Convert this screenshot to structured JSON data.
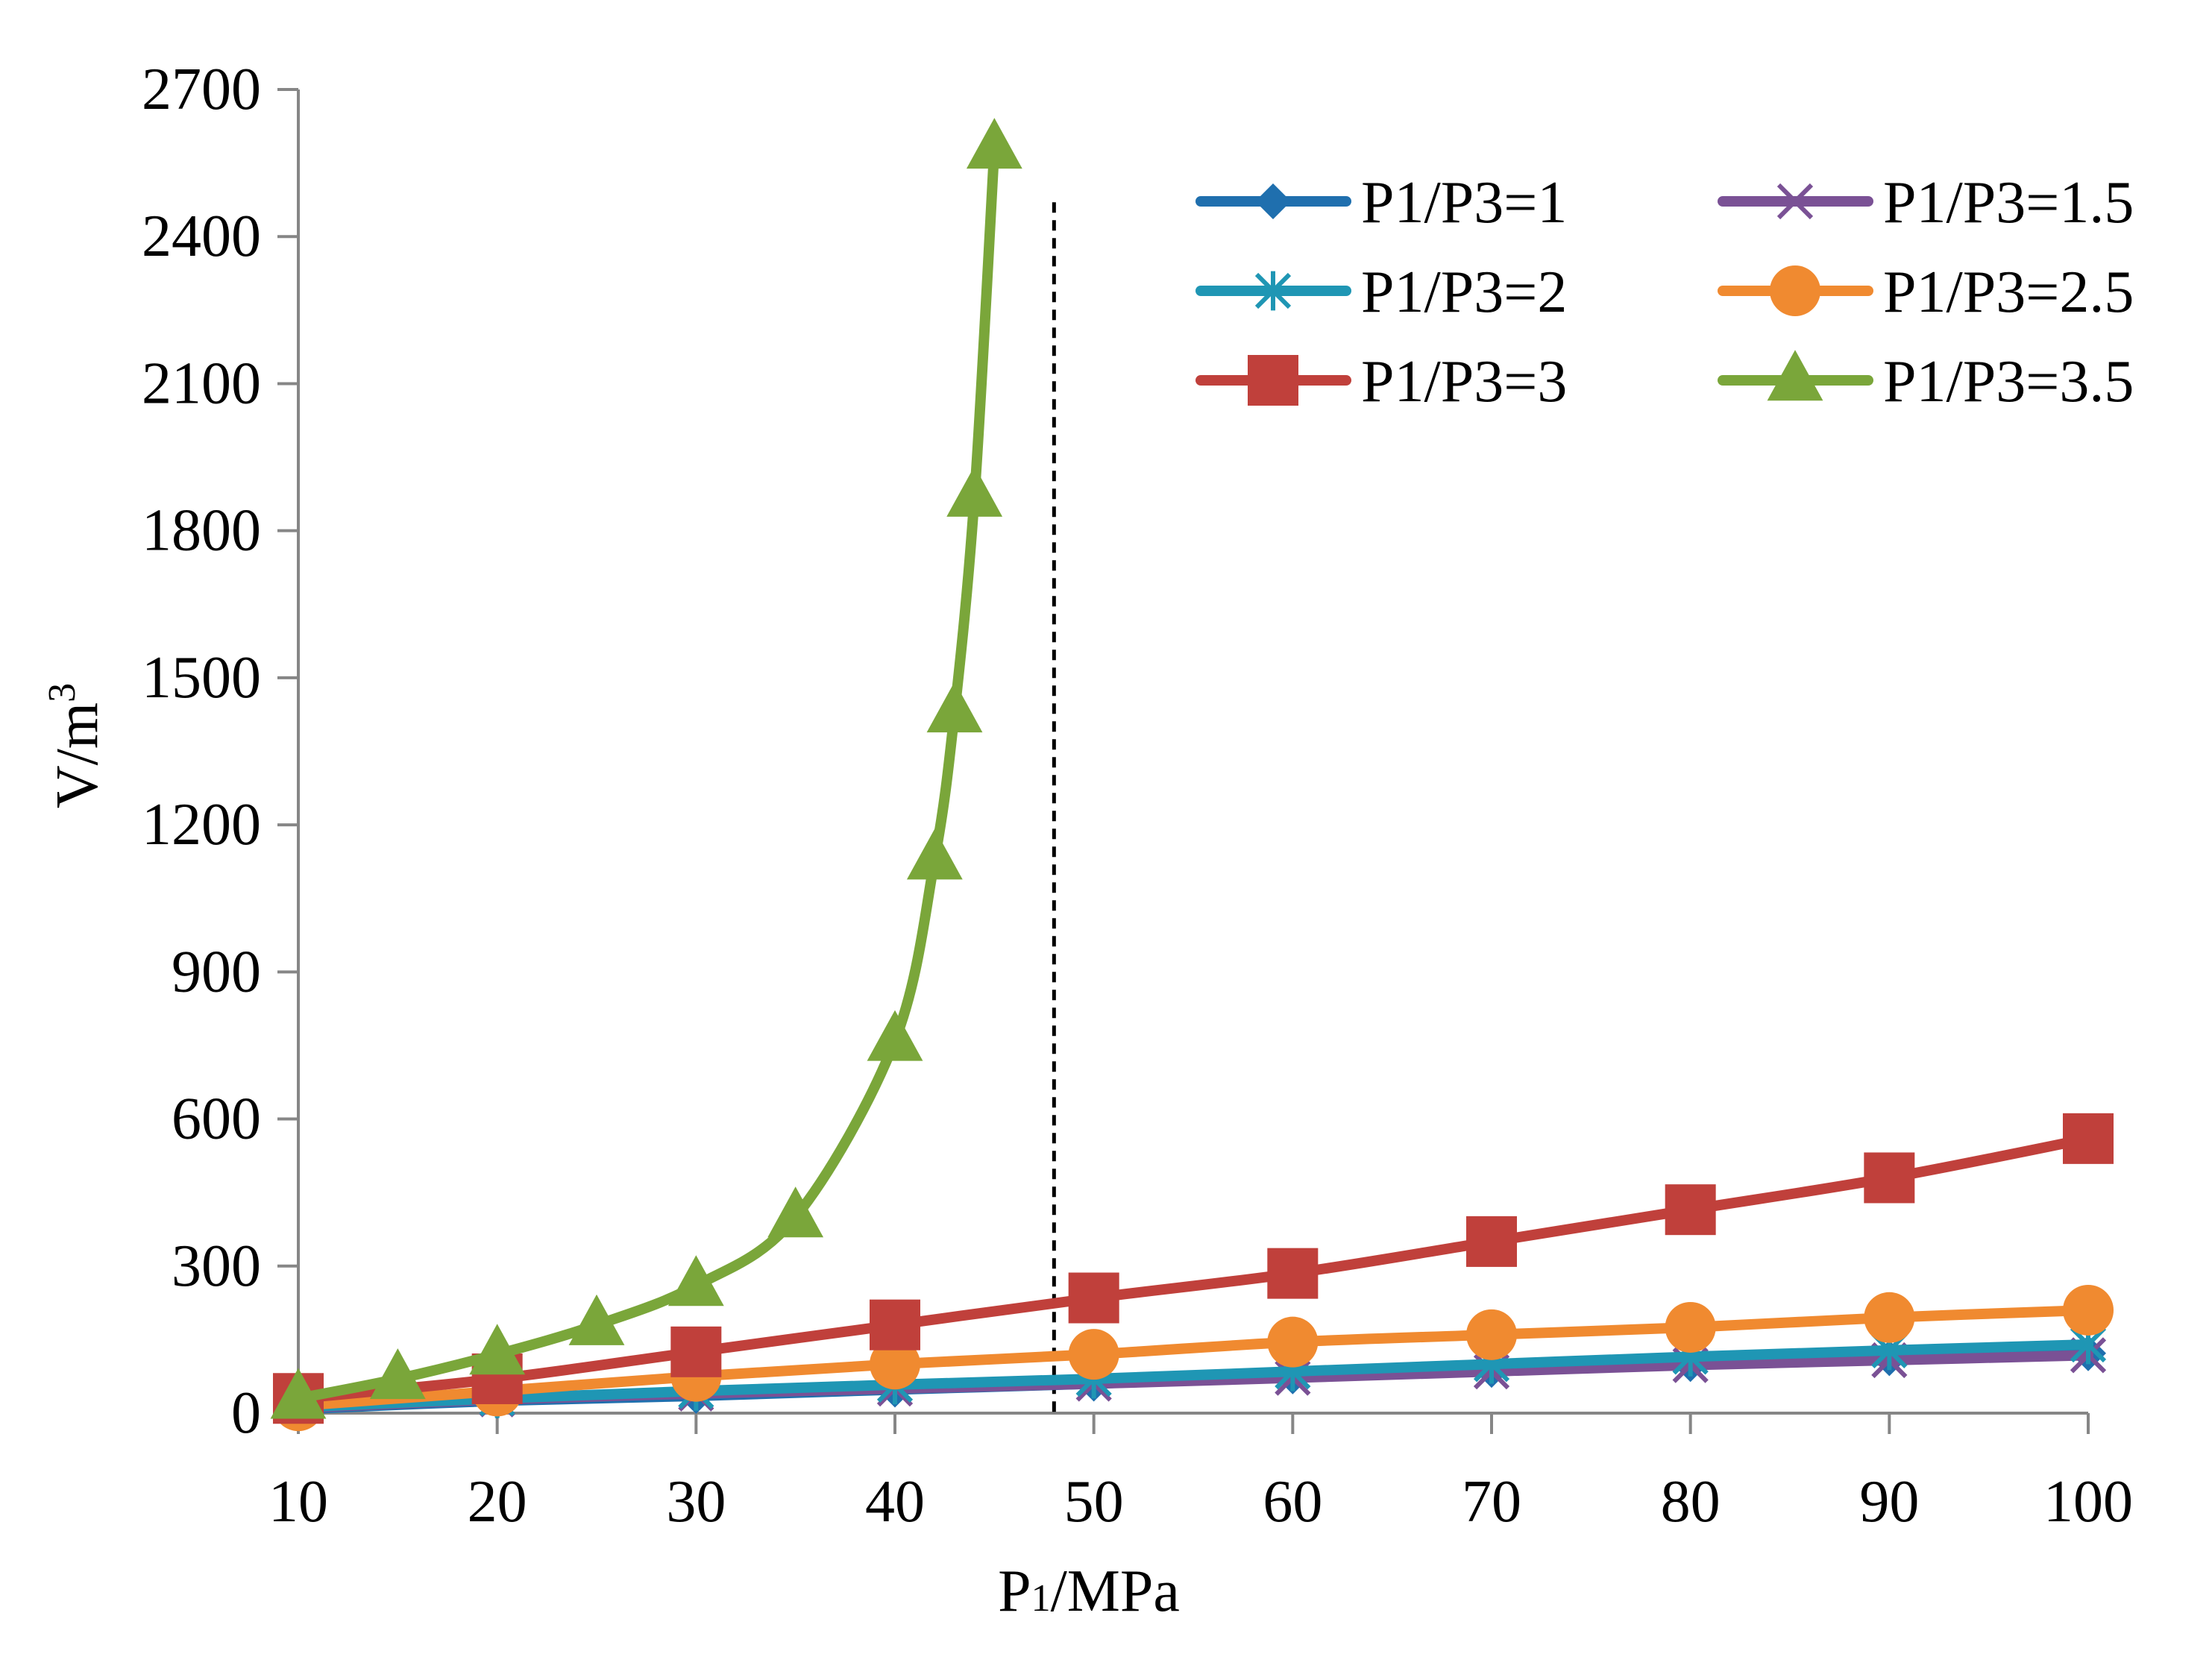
{
  "chart_data": {
    "type": "line",
    "title": "",
    "xlabel": {
      "main": "P",
      "sub": "1",
      "rest": "/MPa"
    },
    "ylabel": {
      "main": "V/m",
      "sup": "3"
    },
    "xlim": [
      10,
      100
    ],
    "ylim": [
      0,
      2700
    ],
    "xticks": [
      "10",
      "20",
      "30",
      "40",
      "50",
      "60",
      "70",
      "80",
      "90",
      "100"
    ],
    "yticks": [
      "0",
      "300",
      "600",
      "900",
      "1200",
      "1500",
      "1800",
      "2100",
      "2400",
      "2700"
    ],
    "reference_line_x": 48,
    "series": [
      {
        "name": "P1/P3=1",
        "color": "#1f6fae",
        "marker": "diamond",
        "x": [
          10,
          20,
          30,
          40,
          50,
          60,
          70,
          80,
          90,
          100
        ],
        "y": [
          8,
          25,
          35,
          48,
          60,
          75,
          88,
          100,
          112,
          122
        ]
      },
      {
        "name": "P1/P3=1.5",
        "color": "#7a5195",
        "marker": "x",
        "x": [
          10,
          20,
          30,
          40,
          50,
          60,
          70,
          80,
          90,
          100
        ],
        "y": [
          10,
          28,
          40,
          50,
          60,
          72,
          85,
          98,
          108,
          118
        ]
      },
      {
        "name": "P1/P3=2",
        "color": "#1f96b4",
        "marker": "star",
        "x": [
          10,
          20,
          30,
          40,
          50,
          60,
          70,
          80,
          90,
          100
        ],
        "y": [
          12,
          30,
          45,
          58,
          70,
          85,
          100,
          115,
          128,
          140
        ]
      },
      {
        "name": "P1/P3=2.5",
        "color": "#f08a30",
        "marker": "circle",
        "x": [
          10,
          20,
          30,
          40,
          50,
          60,
          70,
          80,
          90,
          100
        ],
        "y": [
          15,
          45,
          75,
          100,
          120,
          145,
          160,
          175,
          195,
          210
        ]
      },
      {
        "name": "P1/P3=3",
        "color": "#c0403b",
        "marker": "square",
        "x": [
          10,
          20,
          30,
          40,
          50,
          60,
          70,
          80,
          90,
          100
        ],
        "y": [
          30,
          70,
          125,
          180,
          235,
          285,
          350,
          415,
          480,
          560
        ]
      },
      {
        "name": "P1/P3=3.5",
        "color": "#7aa63a",
        "marker": "triangle",
        "x": [
          10,
          15,
          20,
          25,
          30,
          35,
          40,
          42,
          43,
          44,
          45
        ],
        "y": [
          30,
          70,
          120,
          180,
          260,
          400,
          760,
          1130,
          1430,
          1870,
          2580
        ]
      }
    ]
  }
}
